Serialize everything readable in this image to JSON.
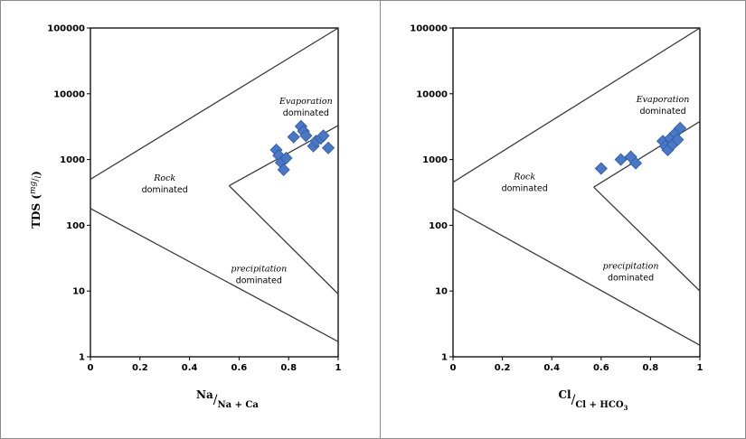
{
  "chart_data": [
    {
      "type": "scatter",
      "title": "",
      "xlabel": {
        "numerator": "Na",
        "denominator": "Na + Ca"
      },
      "ylabel": {
        "main": "TDS (",
        "unit_num": "mg",
        "unit_den": "l",
        "close": ")"
      },
      "xlim": [
        0,
        1
      ],
      "ylim": [
        1,
        100000
      ],
      "yscale": "log",
      "x_ticks": [
        "0",
        "0.2",
        "0.4",
        "0.6",
        "0.8",
        "1"
      ],
      "y_ticks": [
        "1",
        "10",
        "100",
        "1000",
        "10000",
        "100000"
      ],
      "grid": false,
      "marker_color": "#4a78c4",
      "boundaries": [
        [
          [
            0,
            500
          ],
          [
            1,
            100000
          ]
        ],
        [
          [
            0,
            180
          ],
          [
            1,
            1.7
          ]
        ],
        [
          [
            0.56,
            400
          ],
          [
            1,
            3300
          ]
        ],
        [
          [
            0.56,
            400
          ],
          [
            1,
            9
          ]
        ]
      ],
      "region_labels": [
        {
          "lines": [
            "Evaporation",
            "dominated"
          ],
          "styles": [
            "italic",
            "normal"
          ],
          "x": 0.87,
          "y": 7000
        },
        {
          "lines": [
            "Rock",
            "dominated"
          ],
          "styles": [
            "italic",
            "normal"
          ],
          "x": 0.3,
          "y": 480
        },
        {
          "lines": [
            "precipitation",
            "dominated"
          ],
          "styles": [
            "italic",
            "normal"
          ],
          "x": 0.68,
          "y": 20
        }
      ],
      "points": [
        {
          "x": 0.75,
          "y": 1400
        },
        {
          "x": 0.76,
          "y": 1150
        },
        {
          "x": 0.77,
          "y": 900
        },
        {
          "x": 0.78,
          "y": 700
        },
        {
          "x": 0.79,
          "y": 1050
        },
        {
          "x": 0.82,
          "y": 2200
        },
        {
          "x": 0.85,
          "y": 3200
        },
        {
          "x": 0.86,
          "y": 2700
        },
        {
          "x": 0.87,
          "y": 2300
        },
        {
          "x": 0.9,
          "y": 1600
        },
        {
          "x": 0.91,
          "y": 1900
        },
        {
          "x": 0.93,
          "y": 2100
        },
        {
          "x": 0.94,
          "y": 2300
        },
        {
          "x": 0.96,
          "y": 1500
        }
      ]
    },
    {
      "type": "scatter",
      "title": "",
      "xlabel": {
        "numerator": "Cl",
        "denominator": "Cl + HCO",
        "sub": "3"
      },
      "ylabel": null,
      "xlim": [
        0,
        1
      ],
      "ylim": [
        1,
        100000
      ],
      "yscale": "log",
      "x_ticks": [
        "0",
        "0.2",
        "0.4",
        "0.6",
        "0.8",
        "1"
      ],
      "y_ticks": [
        "1",
        "10",
        "100",
        "1000",
        "10000",
        "100000"
      ],
      "grid": false,
      "marker_color": "#4a78c4",
      "boundaries": [
        [
          [
            0,
            450
          ],
          [
            1,
            100000
          ]
        ],
        [
          [
            0,
            180
          ],
          [
            1,
            1.5
          ]
        ],
        [
          [
            0.57,
            380
          ],
          [
            1,
            3800
          ]
        ],
        [
          [
            0.57,
            380
          ],
          [
            1,
            10
          ]
        ]
      ],
      "region_labels": [
        {
          "lines": [
            "Evaporation",
            "dominated"
          ],
          "styles": [
            "italic",
            "normal"
          ],
          "x": 0.85,
          "y": 7500
        },
        {
          "lines": [
            "Rock",
            "dominated"
          ],
          "styles": [
            "italic",
            "normal"
          ],
          "x": 0.29,
          "y": 500
        },
        {
          "lines": [
            "precipitation",
            "dominated"
          ],
          "styles": [
            "italic",
            "normal"
          ],
          "x": 0.72,
          "y": 22
        }
      ],
      "points": [
        {
          "x": 0.6,
          "y": 730
        },
        {
          "x": 0.68,
          "y": 1000
        },
        {
          "x": 0.72,
          "y": 1100
        },
        {
          "x": 0.74,
          "y": 880
        },
        {
          "x": 0.85,
          "y": 1900
        },
        {
          "x": 0.86,
          "y": 1600
        },
        {
          "x": 0.87,
          "y": 1400
        },
        {
          "x": 0.88,
          "y": 2100
        },
        {
          "x": 0.89,
          "y": 1700
        },
        {
          "x": 0.9,
          "y": 2500
        },
        {
          "x": 0.91,
          "y": 2000
        },
        {
          "x": 0.92,
          "y": 3000
        }
      ]
    }
  ]
}
